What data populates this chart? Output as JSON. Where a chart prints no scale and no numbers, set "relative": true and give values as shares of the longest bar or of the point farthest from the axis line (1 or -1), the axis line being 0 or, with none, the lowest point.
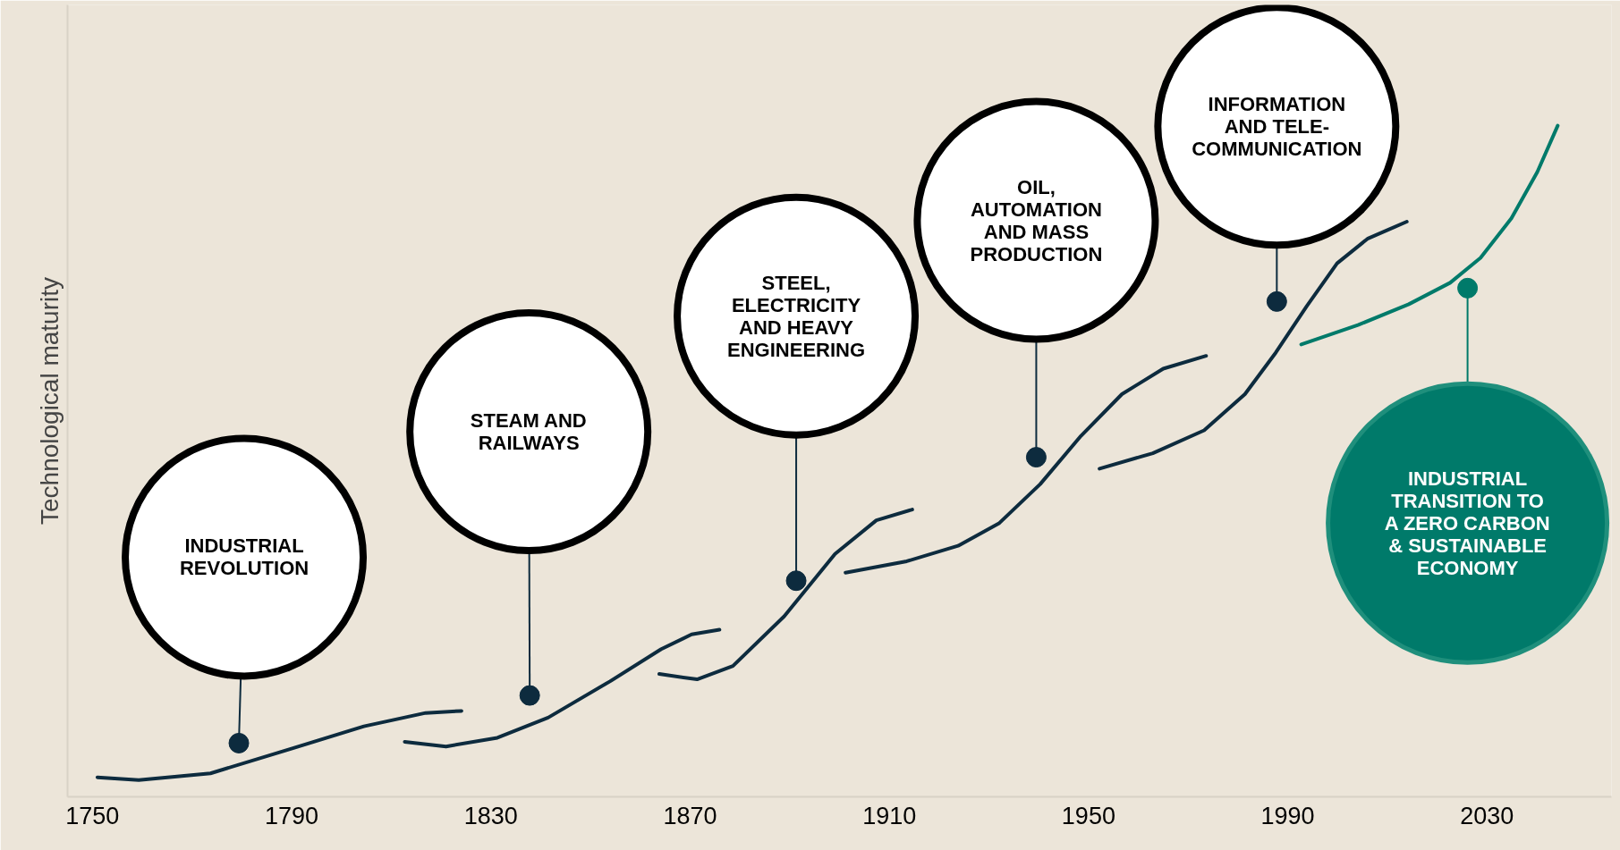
{
  "chart_data": {
    "type": "line",
    "relative": true,
    "ylabel": "Technological maturity",
    "xlim": [
      1745,
      2055
    ],
    "xticks": [
      1750,
      1790,
      1830,
      1870,
      1910,
      1950,
      1990,
      2030
    ],
    "series": [
      {
        "color": "#0d2b3e",
        "x": [
          1751.0,
          1759.3,
          1773.7,
          1790.1,
          1804.5,
          1816.9,
          1824.1
        ],
        "values": [
          0.029,
          0.025,
          0.035,
          0.072,
          0.105,
          0.125,
          0.128
        ]
      },
      {
        "color": "#0d2b3e",
        "x": [
          1812.7,
          1821.0,
          1831.3,
          1841.5,
          1853.9,
          1864.2,
          1870.3,
          1875.9
        ],
        "values": [
          0.082,
          0.075,
          0.088,
          0.118,
          0.172,
          0.22,
          0.242,
          0.249
        ]
      },
      {
        "color": "#0d2b3e",
        "x": [
          1863.8,
          1871.4,
          1878.6,
          1888.9,
          1899.1,
          1907.4,
          1914.6
        ],
        "values": [
          0.183,
          0.175,
          0.195,
          0.269,
          0.362,
          0.412,
          0.428
        ]
      },
      {
        "color": "#0d2b3e",
        "x": [
          1901.2,
          1913.5,
          1923.8,
          1932.1,
          1940.3,
          1948.5,
          1956.7,
          1965.0,
          1973.6
        ],
        "values": [
          0.334,
          0.351,
          0.374,
          0.408,
          0.466,
          0.538,
          0.6,
          0.638,
          0.657
        ]
      },
      {
        "color": "#0d2b3e",
        "x": [
          1952.2,
          1962.9,
          1973.2,
          1981.4,
          1987.6,
          1993.8,
          1999.9,
          2006.1,
          2013.9
        ],
        "values": [
          0.489,
          0.512,
          0.546,
          0.6,
          0.662,
          0.731,
          0.795,
          0.832,
          0.857
        ]
      },
      {
        "color": "#007a6a",
        "x": [
          1992.7,
          2004.1,
          2014.3,
          2022.6,
          2028.7,
          2034.9,
          2040.1,
          2044.2
        ],
        "values": [
          0.674,
          0.703,
          0.734,
          0.766,
          0.803,
          0.862,
          0.931,
          1.0
        ]
      }
    ],
    "annotations": [
      {
        "text": "INDUSTRIAL\nREVOLUTION",
        "x": 1779.4,
        "y": 0.08
      },
      {
        "text": "STEAM AND\nRAILWAYS",
        "x": 1837.8,
        "y": 0.151
      },
      {
        "text": "STEEL,\nELECTRICITY\nAND HEAVY\nENGINEERING",
        "x": 1891.3,
        "y": 0.322
      },
      {
        "text": "OIL,\nAUTOMATION\nAND MASS\nPRODUCTION",
        "x": 1939.5,
        "y": 0.506
      },
      {
        "text": "INFORMATION\nAND TELE-\nCOMMUNICATION",
        "x": 1987.8,
        "y": 0.738
      },
      {
        "text": "INDUSTRIAL\nTRANSITION TO\nA ZERO CARBON\n& SUSTAINABLE\nECONOMY",
        "x": 2026.1,
        "y": 0.758
      }
    ]
  }
}
